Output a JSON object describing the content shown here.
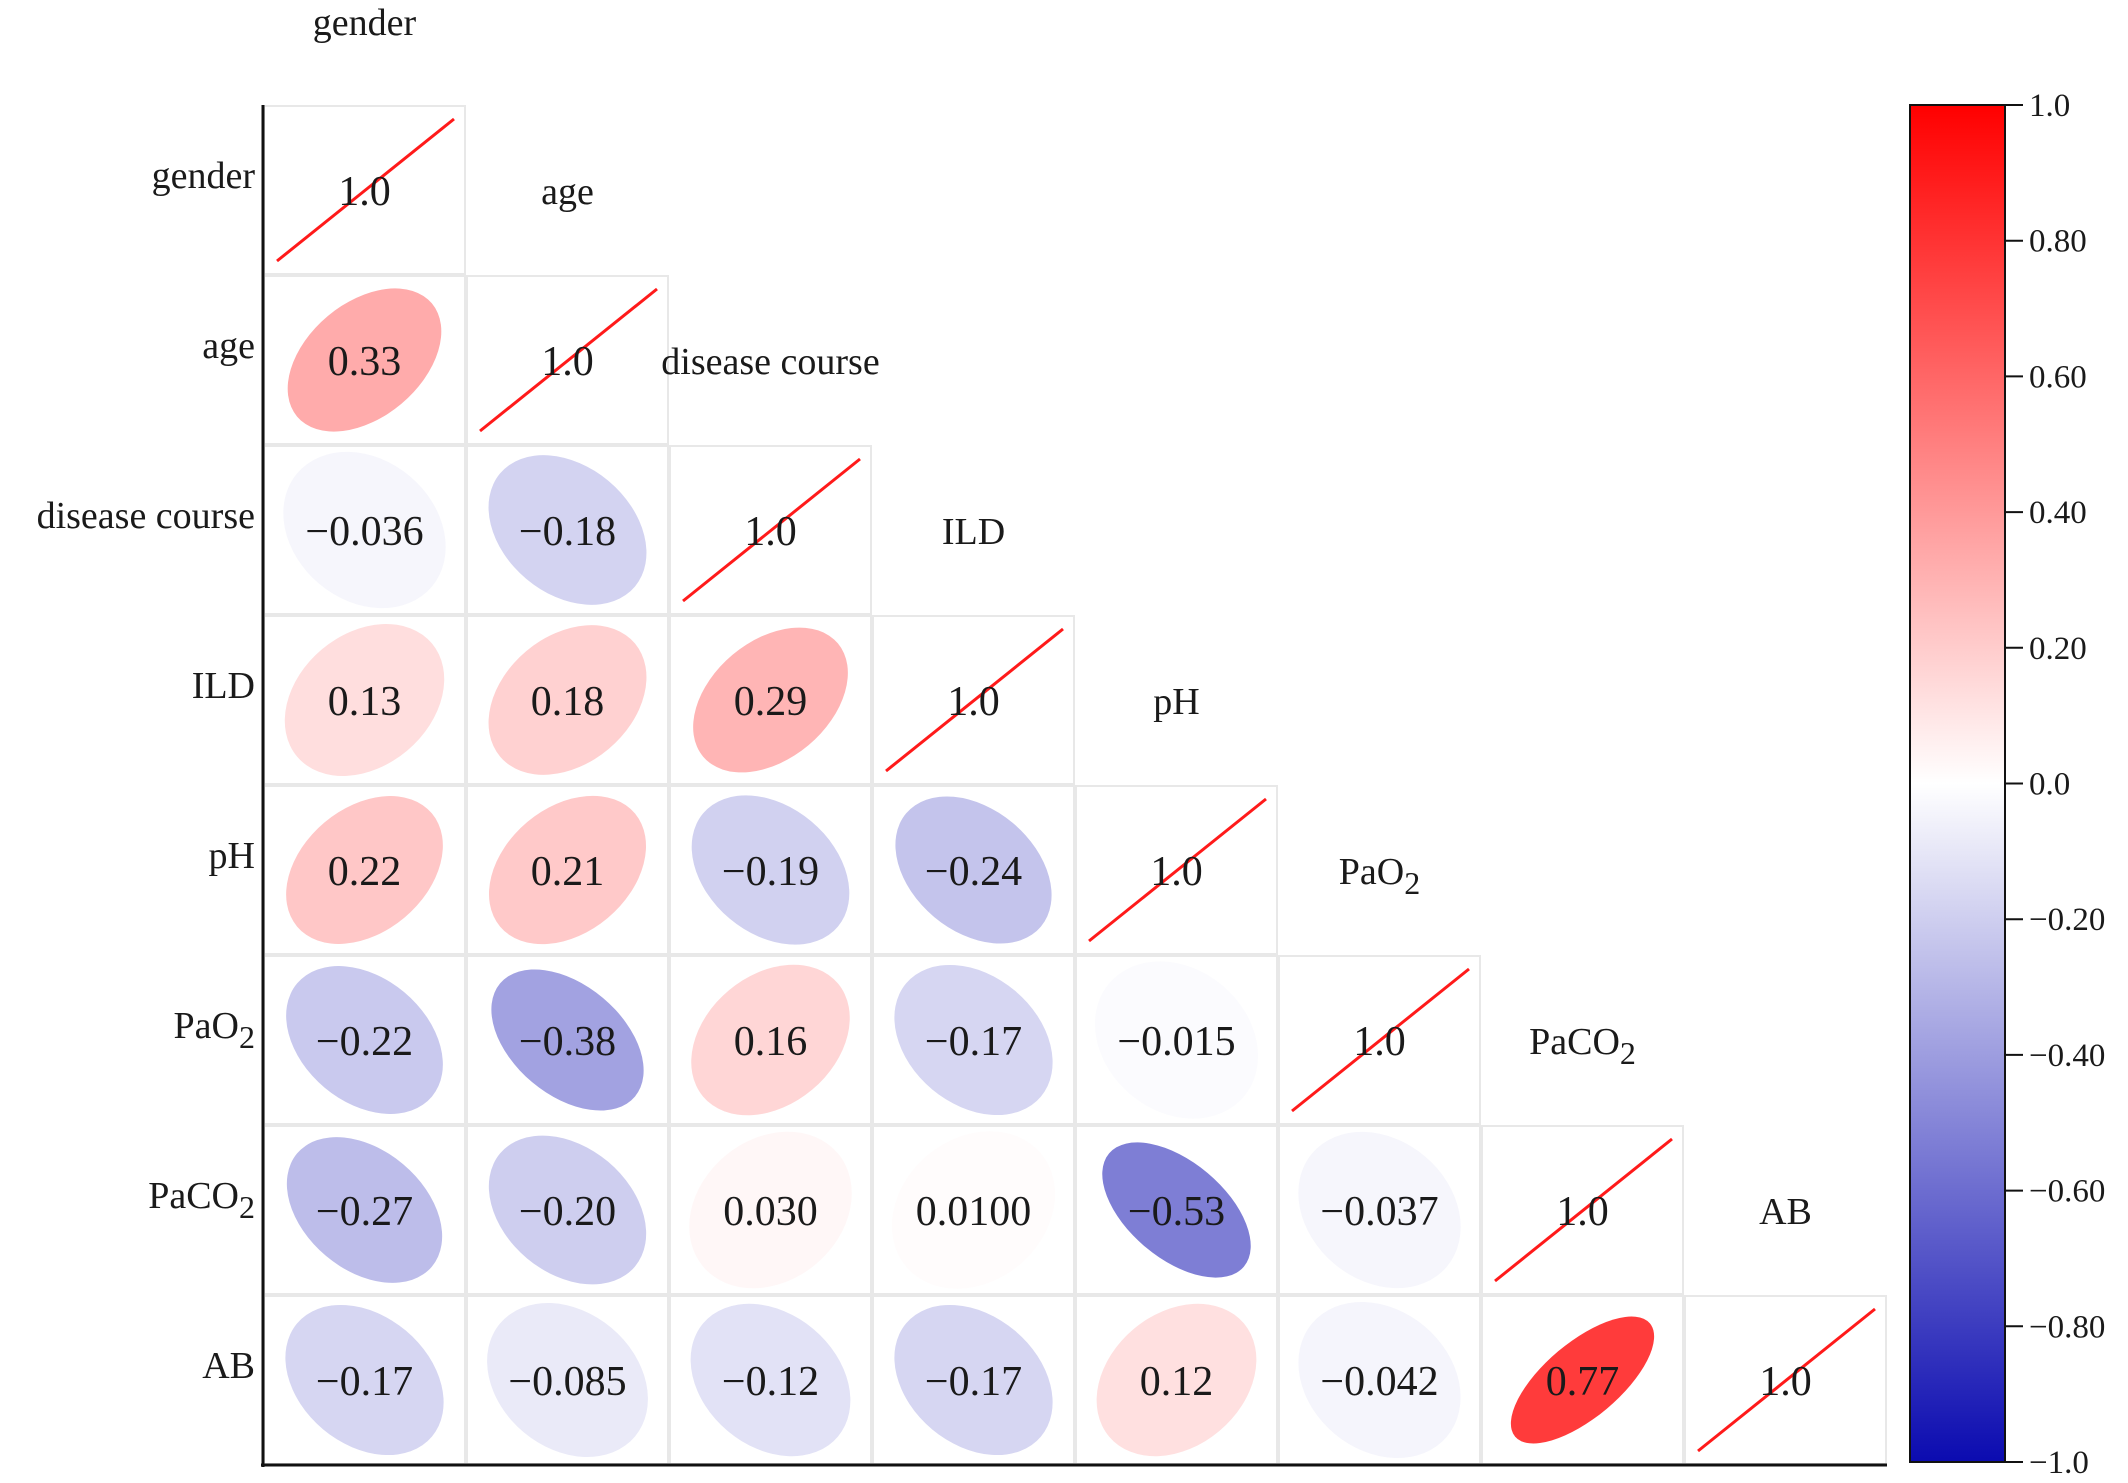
{
  "chart_data": {
    "type": "heatmap",
    "variables": [
      "gender",
      "age",
      "disease course",
      "ILD",
      "pH",
      "PaO2",
      "PaCO2",
      "AB"
    ],
    "variable_labels": [
      {
        "base": "gender",
        "sub": ""
      },
      {
        "base": "age",
        "sub": ""
      },
      {
        "base": "disease course",
        "sub": ""
      },
      {
        "base": "ILD",
        "sub": ""
      },
      {
        "base": "pH",
        "sub": ""
      },
      {
        "base": "PaO",
        "sub": "2"
      },
      {
        "base": "PaCO",
        "sub": "2"
      },
      {
        "base": "AB",
        "sub": ""
      }
    ],
    "matrix": [
      [
        1.0,
        null,
        null,
        null,
        null,
        null,
        null,
        null
      ],
      [
        0.33,
        1.0,
        null,
        null,
        null,
        null,
        null,
        null
      ],
      [
        -0.036,
        -0.18,
        1.0,
        null,
        null,
        null,
        null,
        null
      ],
      [
        0.13,
        0.18,
        0.29,
        1.0,
        null,
        null,
        null,
        null
      ],
      [
        0.22,
        0.21,
        -0.19,
        -0.24,
        1.0,
        null,
        null,
        null
      ],
      [
        -0.22,
        -0.38,
        0.16,
        -0.17,
        -0.015,
        1.0,
        null,
        null
      ],
      [
        -0.27,
        -0.2,
        0.03,
        0.01,
        -0.53,
        -0.037,
        1.0,
        null
      ],
      [
        -0.17,
        -0.085,
        -0.12,
        -0.17,
        0.12,
        -0.042,
        0.77,
        1.0
      ]
    ],
    "value_labels": [
      [
        "1.0"
      ],
      [
        "0.33",
        "1.0"
      ],
      [
        "−0.036",
        "−0.18",
        "1.0"
      ],
      [
        "0.13",
        "0.18",
        "0.29",
        "1.0"
      ],
      [
        "0.22",
        "0.21",
        "−0.19",
        "−0.24",
        "1.0"
      ],
      [
        "−0.22",
        "−0.38",
        "0.16",
        "−0.17",
        "−0.015",
        "1.0"
      ],
      [
        "−0.27",
        "−0.20",
        "0.030",
        "0.0100",
        "−0.53",
        "−0.037",
        "1.0"
      ],
      [
        "−0.17",
        "−0.085",
        "−0.12",
        "−0.17",
        "0.12",
        "−0.042",
        "0.77",
        "1.0"
      ]
    ],
    "colorbar": {
      "range": [
        -1.0,
        1.0
      ],
      "ticks": [
        1.0,
        0.8,
        0.6,
        0.4,
        0.2,
        0.0,
        -0.2,
        -0.4,
        -0.6,
        -0.8,
        -1.0
      ],
      "tick_labels": [
        "1.0",
        "0.80",
        "0.60",
        "0.40",
        "0.20",
        "0.0",
        "−0.20",
        "−0.40",
        "−0.60",
        "−0.80",
        "−1.0"
      ],
      "colormap": [
        "#0b0bb0",
        "#ffffff",
        "#ff0000"
      ]
    },
    "diagonal_line_color": "#ff1a1a",
    "layout": "lower-triangle"
  }
}
